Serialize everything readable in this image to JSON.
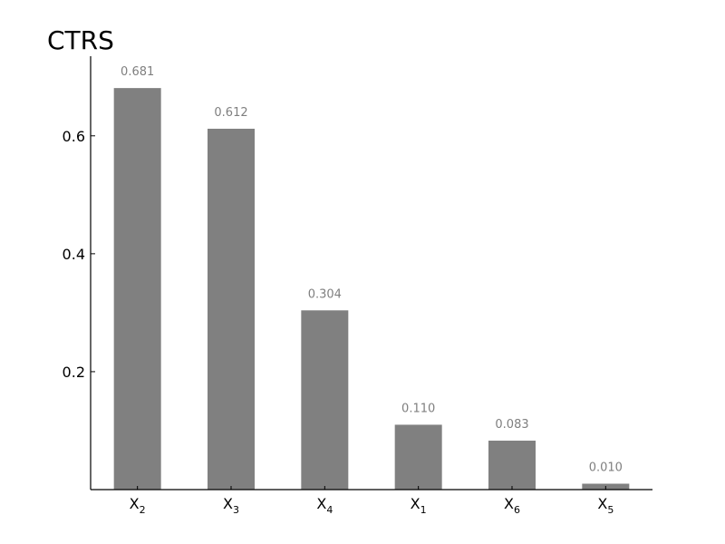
{
  "chart_data": {
    "type": "bar",
    "title": "CTRS",
    "categories": [
      {
        "base": "X",
        "sub": "2"
      },
      {
        "base": "X",
        "sub": "3"
      },
      {
        "base": "X",
        "sub": "4"
      },
      {
        "base": "X",
        "sub": "1"
      },
      {
        "base": "X",
        "sub": "6"
      },
      {
        "base": "X",
        "sub": "5"
      }
    ],
    "values": [
      0.681,
      0.612,
      0.304,
      0.11,
      0.083,
      0.01
    ],
    "value_labels": [
      "0.681",
      "0.612",
      "0.304",
      "0.110",
      "0.083",
      "0.010"
    ],
    "ylim": [
      0,
      0.735
    ],
    "yticks": [
      0.2,
      0.4,
      0.6
    ],
    "ytick_labels": [
      "0.2",
      "0.4",
      "0.6"
    ],
    "xlabel": "",
    "ylabel": "",
    "grid": false,
    "colors": {
      "bar": "#808080",
      "value_label": "#7f7f7f",
      "axis": "#000000",
      "text": "#000000"
    }
  }
}
